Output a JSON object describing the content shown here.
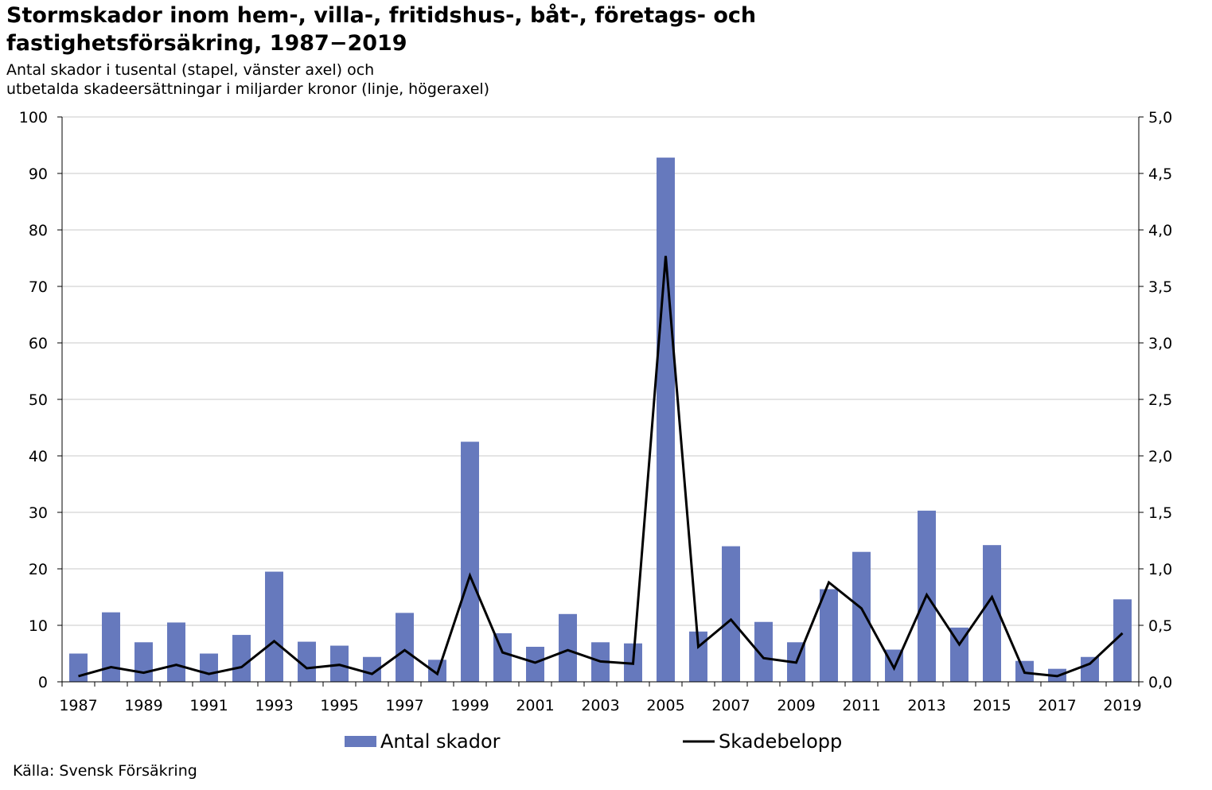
{
  "title": "Stormskador inom hem-, villa-, fritidshus-, båt-, företags- och fastighetsförsäkring, 1987−2019",
  "subtitle_line1": "Antal skador i tusental (stapel, vänster axel) och",
  "subtitle_line2": "utbetalda skadeersättningar i miljarder kronor (linje, högeraxel)",
  "source": "Källa: Svensk Försäkring",
  "colors": {
    "bar": "#6679bd",
    "line": "#000000",
    "grid": "#c8c8c8"
  },
  "chart_data": {
    "type": "bar+line",
    "x": [
      1987,
      1988,
      1989,
      1990,
      1991,
      1992,
      1993,
      1994,
      1995,
      1996,
      1997,
      1998,
      1999,
      2000,
      2001,
      2002,
      2003,
      2004,
      2005,
      2006,
      2007,
      2008,
      2009,
      2010,
      2011,
      2012,
      2013,
      2014,
      2015,
      2016,
      2017,
      2018,
      2019
    ],
    "x_tick_labels": [
      "1987",
      "1989",
      "1991",
      "1993",
      "1995",
      "1997",
      "1999",
      "2001",
      "2003",
      "2005",
      "2007",
      "2009",
      "2011",
      "2013",
      "2015",
      "2017",
      "2019"
    ],
    "series": [
      {
        "name": "Antal skador",
        "type": "bar",
        "axis": "left",
        "values": [
          5.0,
          12.3,
          7.0,
          10.5,
          5.0,
          8.3,
          19.5,
          7.1,
          6.4,
          4.4,
          12.2,
          3.9,
          42.5,
          8.6,
          6.2,
          12.0,
          7.0,
          6.8,
          92.8,
          8.9,
          24.0,
          10.6,
          7.0,
          16.4,
          23.0,
          5.7,
          30.3,
          9.6,
          24.2,
          3.7,
          2.3,
          4.4,
          14.6
        ]
      },
      {
        "name": "Skadebelopp",
        "type": "line",
        "axis": "right",
        "values": [
          0.05,
          0.13,
          0.08,
          0.15,
          0.07,
          0.13,
          0.36,
          0.12,
          0.15,
          0.07,
          0.28,
          0.07,
          0.94,
          0.26,
          0.17,
          0.28,
          0.18,
          0.16,
          3.77,
          0.31,
          0.55,
          0.21,
          0.17,
          0.88,
          0.65,
          0.12,
          0.77,
          0.33,
          0.75,
          0.08,
          0.05,
          0.16,
          0.43
        ]
      }
    ],
    "y_left": {
      "min": 0,
      "max": 100,
      "ticks": [
        "0",
        "10",
        "20",
        "30",
        "40",
        "50",
        "60",
        "70",
        "80",
        "90",
        "100"
      ]
    },
    "y_right": {
      "min": 0,
      "max": 5,
      "ticks": [
        "0,0",
        "0,5",
        "1,0",
        "1,5",
        "2,0",
        "2,5",
        "3,0",
        "3,5",
        "4,0",
        "4,5",
        "5,0"
      ]
    },
    "grid": true,
    "legend_position": "bottom"
  }
}
